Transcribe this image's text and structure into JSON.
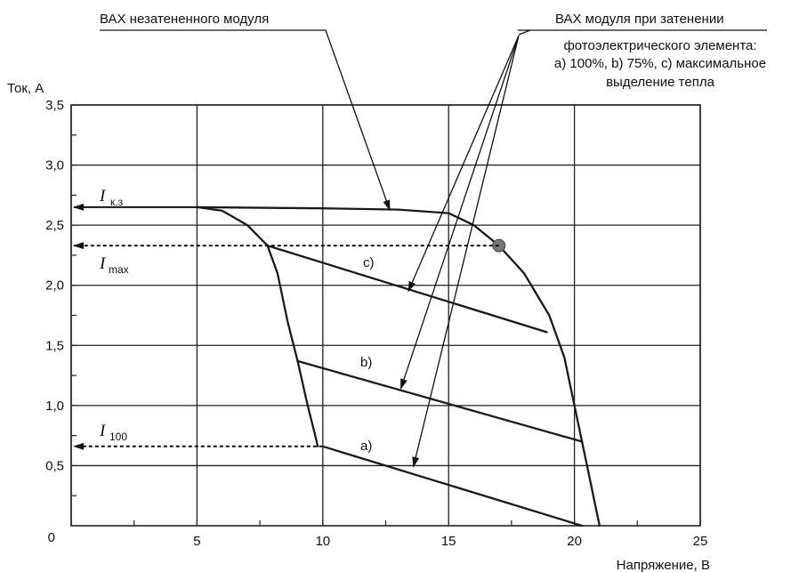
{
  "chart_data": {
    "type": "line",
    "ylabel": "Ток, А",
    "xlabel": "Напряжение, В",
    "xlim": [
      0,
      25
    ],
    "ylim": [
      0,
      3.5
    ],
    "x_ticks": [
      {
        "v": 0,
        "label": "0"
      },
      {
        "v": 5,
        "label": "5"
      },
      {
        "v": 10,
        "label": "10"
      },
      {
        "v": 15,
        "label": "15"
      },
      {
        "v": 20,
        "label": "20"
      },
      {
        "v": 25,
        "label": "25"
      }
    ],
    "y_ticks": [
      {
        "v": 0.5,
        "label": "0,5"
      },
      {
        "v": 1.0,
        "label": "1,0"
      },
      {
        "v": 1.5,
        "label": "1,5"
      },
      {
        "v": 2.0,
        "label": "2,0"
      },
      {
        "v": 2.5,
        "label": "2,5"
      },
      {
        "v": 3.0,
        "label": "3,0"
      },
      {
        "v": 3.5,
        "label": "3,5"
      }
    ],
    "y_origin_label": "0",
    "grid": true,
    "series": [
      {
        "id": "unshaded",
        "x": [
          5.0,
          10.0,
          13.0,
          15.0,
          16.0,
          17.0,
          18.0,
          19.0,
          19.6,
          20.0,
          20.3,
          20.6,
          20.8,
          21.0
        ],
        "y": [
          2.65,
          2.64,
          2.63,
          2.6,
          2.5,
          2.33,
          2.1,
          1.75,
          1.4,
          1.0,
          0.7,
          0.4,
          0.2,
          0.0
        ]
      },
      {
        "id": "c",
        "label": "c)",
        "x": [
          7.8,
          18.9
        ],
        "y": [
          2.33,
          1.61
        ]
      },
      {
        "id": "b",
        "label": "b)",
        "x": [
          9.0,
          20.3
        ],
        "y": [
          1.37,
          0.7
        ]
      },
      {
        "id": "a",
        "label": "a)",
        "x": [
          10.0,
          20.3
        ],
        "y": [
          0.66,
          0.0
        ]
      },
      {
        "id": "shade-knee",
        "x": [
          5.0,
          6.0,
          7.0,
          7.8,
          8.2,
          8.6,
          9.0,
          9.4,
          9.7,
          9.8
        ],
        "y": [
          2.65,
          2.62,
          2.5,
          2.33,
          2.1,
          1.7,
          1.37,
          1.0,
          0.75,
          0.66
        ]
      }
    ],
    "mpp_point": {
      "x": 17.0,
      "y": 2.33
    },
    "reference_lines": [
      {
        "id": "isc",
        "symbol": "I",
        "sub": "к.з",
        "y": 2.65,
        "x_from": 5.0
      },
      {
        "id": "imax",
        "symbol": "I",
        "sub": "max",
        "y": 2.33,
        "x_from": 17.0
      },
      {
        "id": "i100",
        "symbol": "I",
        "sub": "100",
        "y": 0.66,
        "x_from": 10.0
      }
    ],
    "annotations": {
      "unshaded": "ВАХ незатененного модуля",
      "shaded_title": "ВАХ модуля при затенении",
      "shaded_line1": "фотоэлектрического элемента:",
      "shaded_line2": "а) 100%, b) 75%, c) максимальное",
      "shaded_line3": "выделение тепла"
    }
  }
}
